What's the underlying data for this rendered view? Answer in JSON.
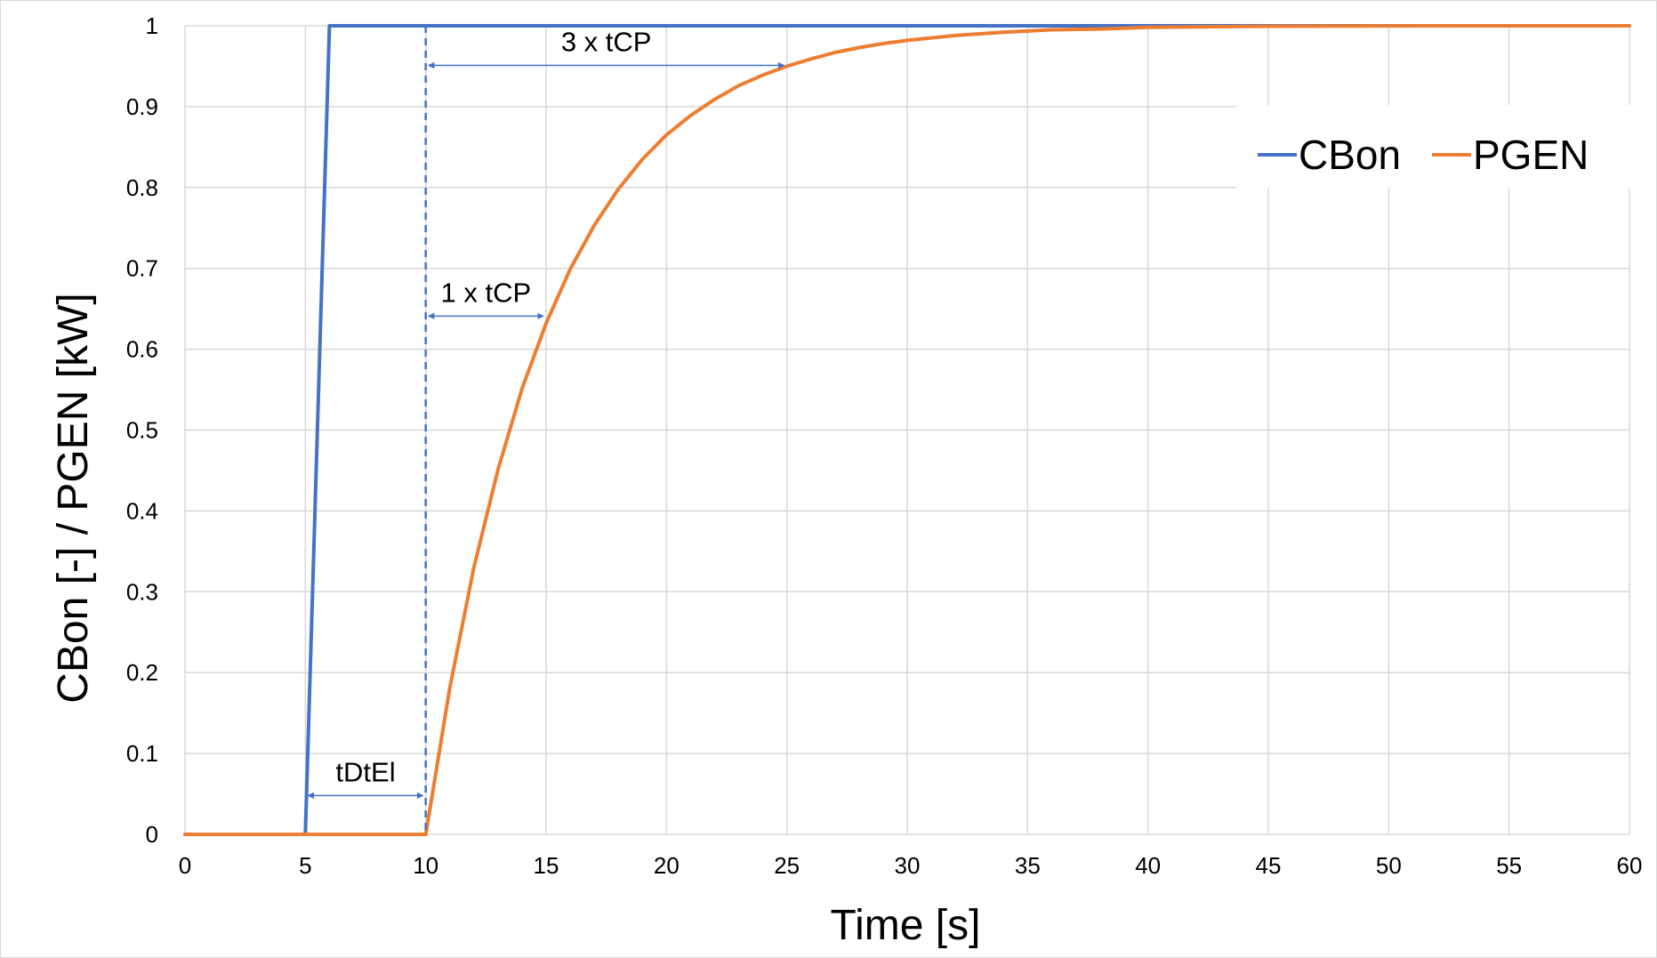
{
  "chart_data": {
    "type": "line",
    "title": "",
    "xlabel": "Time [s]",
    "ylabel": "CBon [-] / PGEN [kW]",
    "xlim": [
      0,
      60
    ],
    "ylim": [
      0,
      1
    ],
    "xticks": [
      0,
      5,
      10,
      15,
      20,
      25,
      30,
      35,
      40,
      45,
      50,
      55,
      60
    ],
    "yticks": [
      0,
      0.1,
      0.2,
      0.3,
      0.4,
      0.5,
      0.6,
      0.7,
      0.8,
      0.9,
      1
    ],
    "grid": true,
    "legend_position": "top-right",
    "series": [
      {
        "name": "CBon",
        "color": "#4472C4",
        "x": [
          0,
          5,
          6,
          60
        ],
        "y": [
          0,
          0,
          1,
          1
        ]
      },
      {
        "name": "PGEN",
        "color": "#ED7D31",
        "x": [
          0,
          10,
          11,
          12,
          13,
          14,
          15,
          16,
          17,
          18,
          19,
          20,
          21,
          22,
          23,
          24,
          25,
          26,
          27,
          28,
          29,
          30,
          32,
          34,
          36,
          38,
          40,
          45,
          50,
          55,
          60
        ],
        "y": [
          0,
          0,
          0.181,
          0.33,
          0.451,
          0.551,
          0.632,
          0.699,
          0.753,
          0.798,
          0.835,
          0.865,
          0.889,
          0.909,
          0.926,
          0.939,
          0.95,
          0.959,
          0.967,
          0.973,
          0.978,
          0.982,
          0.988,
          0.992,
          0.995,
          0.996,
          0.998,
          0.9995,
          0.9999,
          1,
          1
        ]
      }
    ],
    "annotations": [
      {
        "label": "tDtEl",
        "type": "dimension-arrow",
        "x_start": 5,
        "x_end": 10,
        "y": 0.048
      },
      {
        "label": "1 x tCP",
        "type": "dimension-arrow",
        "x_start": 10,
        "x_end": 15,
        "y": 0.641
      },
      {
        "label": "3 x tCP",
        "type": "dimension-arrow",
        "x_start": 10,
        "x_end": 25,
        "y": 0.951
      }
    ],
    "reference_line": {
      "type": "vertical-dashed",
      "x": 10,
      "color": "#4472C4"
    }
  }
}
